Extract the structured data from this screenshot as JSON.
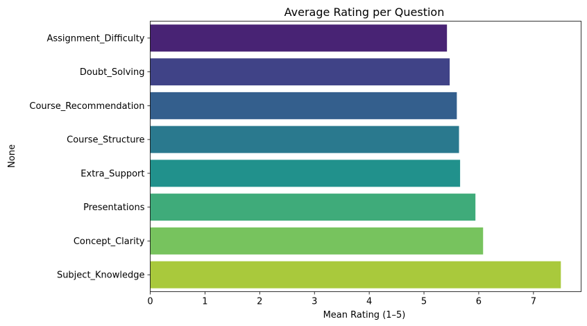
{
  "chart_data": {
    "type": "bar",
    "orientation": "horizontal",
    "title": "Average Rating per Question",
    "xlabel": "Mean Rating (1–5)",
    "ylabel": "None",
    "categories": [
      "Assignment_Difficulty",
      "Doubt_Solving",
      "Course_Recommendation",
      "Course_Structure",
      "Extra_Support",
      "Presentations",
      "Concept_Clarity",
      "Subject_Knowledge"
    ],
    "values": [
      5.42,
      5.47,
      5.6,
      5.64,
      5.66,
      5.94,
      6.08,
      7.5
    ],
    "colors": [
      "#482374",
      "#404387",
      "#345f8d",
      "#2a798e",
      "#21918c",
      "#3fab7a",
      "#77c35e",
      "#a9c93c"
    ],
    "xlim": [
      0,
      7.87
    ],
    "xticks": [
      "0",
      "1",
      "2",
      "3",
      "4",
      "5",
      "6",
      "7"
    ],
    "grid": false,
    "legend": "none"
  }
}
